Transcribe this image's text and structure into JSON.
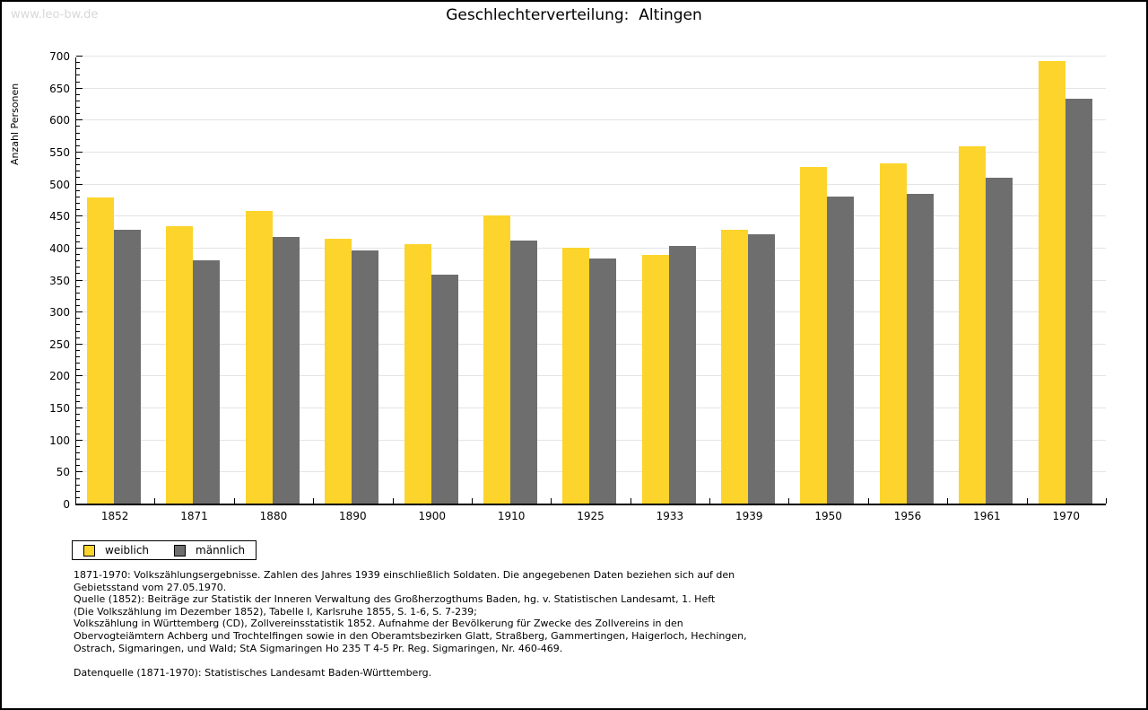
{
  "page": {
    "watermark": "www.leo-bw.de",
    "title": "Geschlechterverteilung:  Altingen"
  },
  "chart_data": {
    "type": "bar",
    "title": "Geschlechterverteilung: Altingen",
    "xlabel": "",
    "ylabel": "Anzahl Personen",
    "ylim": [
      0,
      700
    ],
    "ytick_step": 50,
    "ytick_minor_step": 10,
    "grid": true,
    "legend_position": "bottom-left",
    "categories": [
      "1852",
      "1871",
      "1880",
      "1890",
      "1900",
      "1910",
      "1925",
      "1933",
      "1939",
      "1950",
      "1956",
      "1961",
      "1970"
    ],
    "series": [
      {
        "name": "weiblich",
        "color": "#fcd42c",
        "values": [
          478,
          433,
          457,
          414,
          406,
          450,
          400,
          389,
          428,
          526,
          531,
          559,
          691
        ]
      },
      {
        "name": "männlich",
        "color": "#6e6e6e",
        "values": [
          428,
          380,
          417,
          395,
          358,
          411,
          383,
          403,
          421,
          480,
          484,
          509,
          633
        ]
      }
    ]
  },
  "footer": {
    "lines": [
      "1871-1970: Volkszählungsergebnisse. Zahlen des Jahres 1939 einschließlich Soldaten. Die angegebenen Daten beziehen sich auf den",
      "Gebietsstand vom 27.05.1970.",
      "Quelle (1852): Beiträge zur Statistik der Inneren Verwaltung des Großherzogthums Baden, hg. v. Statistischen Landesamt, 1. Heft",
      "(Die Volkszählung im Dezember 1852), Tabelle I, Karlsruhe 1855, S. 1-6, S. 7-239;",
      "Volkszählung in Württemberg (CD), Zollvereinsstatistik 1852. Aufnahme der Bevölkerung für Zwecke des Zollvereins in den",
      "Obervogteiämtern Achberg und Trochtelfingen sowie in den Oberamtsbezirken Glatt, Straßberg, Gammertingen, Haigerloch, Hechingen,",
      "Ostrach, Sigmaringen, und Wald; StA Sigmaringen Ho 235 T 4-5 Pr. Reg. Sigmaringen, Nr. 460-469.",
      "",
      "Datenquelle (1871-1970): Statistisches Landesamt Baden-Württemberg."
    ]
  }
}
